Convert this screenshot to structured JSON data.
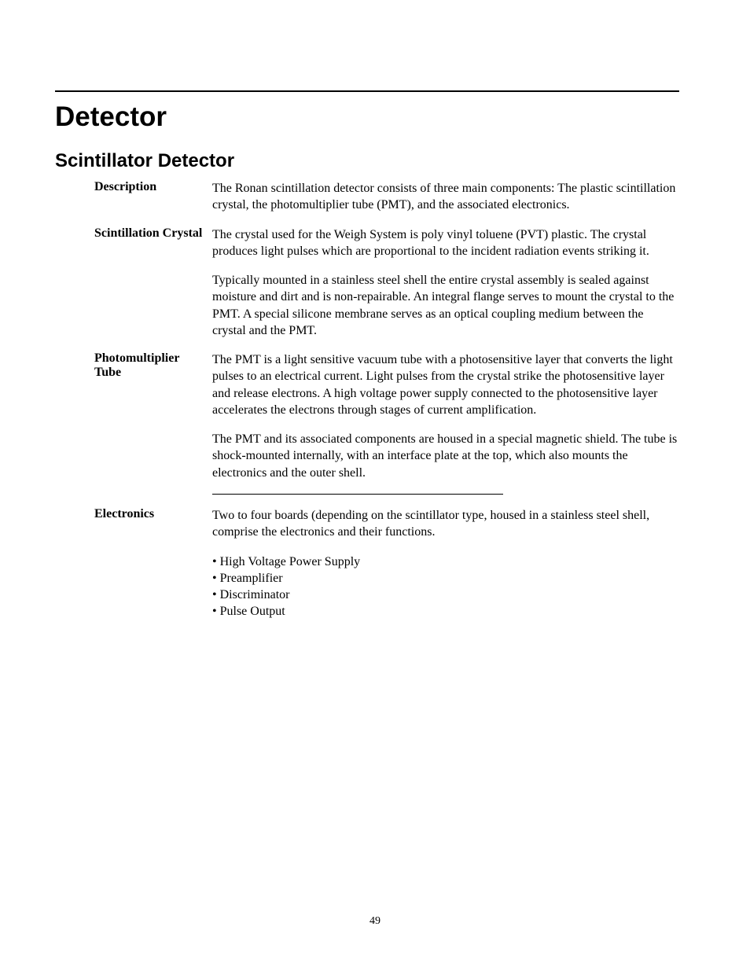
{
  "page": {
    "number": "49",
    "title": "Detector",
    "subtitle": "Scintillator Detector"
  },
  "sections": {
    "description": {
      "label": "Description",
      "p1": "The Ronan scintillation detector consists of three main components: The plastic scintillation crystal, the photomultiplier tube (PMT), and the associated electronics."
    },
    "crystal": {
      "label": "Scintillation Crystal",
      "p1": "The crystal used for the Weigh System is poly vinyl toluene (PVT) plastic.  The crystal produces light pulses which are proportional to the incident radiation events striking it.",
      "p2": "Typically mounted in a stainless steel shell the entire crystal assembly is sealed against moisture and dirt and is non-repairable.  An integral flange serves to mount the crystal to the PMT.  A special silicone membrane serves as an optical coupling medium between the crystal and the PMT."
    },
    "pmt": {
      "label": "Photomultiplier Tube",
      "p1": "The PMT is a light sensitive vacuum tube with a photosensitive layer that converts the light pulses to an electrical current.  Light pulses from the crystal strike the photosensitive layer and release electrons.  A high voltage power supply connected to the photosensitive layer accelerates the electrons through stages of current amplification.",
      "p2": "The PMT and its associated components are housed in a special magnetic shield.  The tube is shock-mounted internally, with an interface plate at the top, which also mounts the electronics and the outer shell."
    },
    "electronics": {
      "label": "Electronics",
      "p1": "Two to four boards (depending on the scintillator type, housed in a stainless steel shell, comprise the electronics and their functions.",
      "b1": "High Voltage Power Supply",
      "b2": "Preamplifier",
      "b3": "Discriminator",
      "b4": "Pulse Output"
    }
  }
}
